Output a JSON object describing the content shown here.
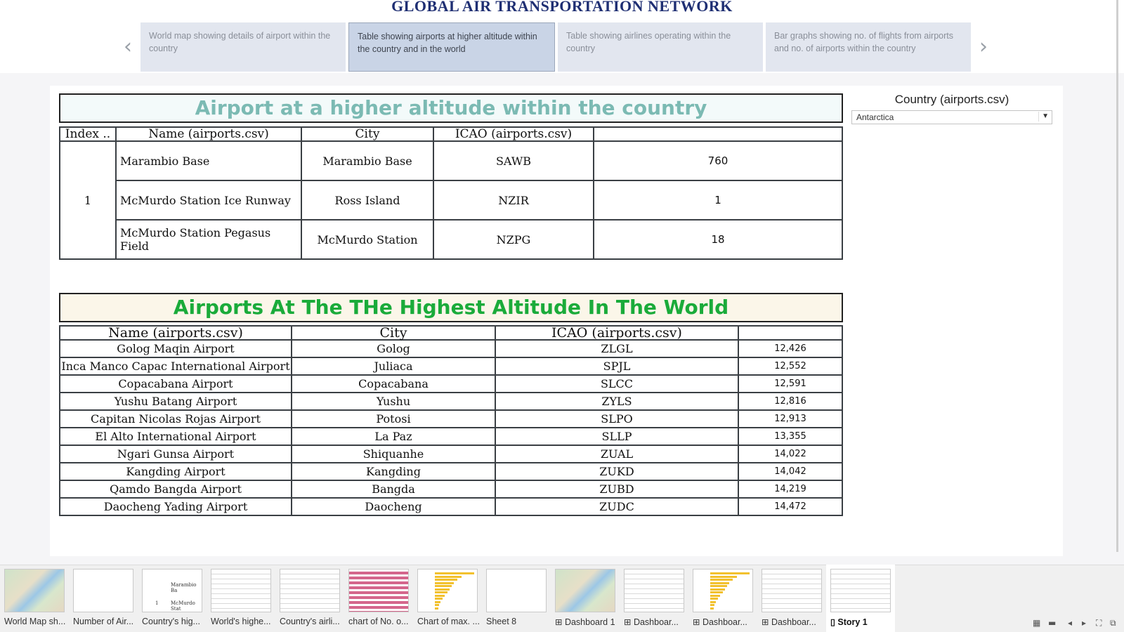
{
  "story": {
    "title": "GLOBAL AIR TRANSPORTATION NETWORK",
    "prev_icon": "chevron-left-icon",
    "next_icon": "chevron-right-icon",
    "points": [
      {
        "label": "World map showing details of airport within the country",
        "active": false
      },
      {
        "label": "Table showing airports at higher altitude within the country and in the world",
        "active": true
      },
      {
        "label": "Table showing airlines operating within the country",
        "active": false
      },
      {
        "label": "Bar graphs showing no. of flights from airports and no. of airports within the country",
        "active": false
      }
    ]
  },
  "country_table": {
    "title": "Airport at a higher altitude within the country",
    "columns": [
      "Index ..",
      "Name (airports.csv)",
      "City",
      "ICAO (airports.csv)",
      ""
    ],
    "index": "1",
    "rows": [
      {
        "name": "Marambio Base",
        "city": "Marambio Base",
        "icao": "SAWB",
        "value": "760"
      },
      {
        "name": "McMurdo Station Ice Runway",
        "city": "Ross Island",
        "icao": "NZIR",
        "value": "1"
      },
      {
        "name": "McMurdo Station Pegasus Field",
        "city": "McMurdo Station",
        "icao": "NZPG",
        "value": "18"
      }
    ]
  },
  "world_table": {
    "title": "Airports At The THe Highest Altitude In The World",
    "columns": [
      "Name (airports.csv)",
      "City",
      "ICAO (airports.csv)",
      ""
    ],
    "rows": [
      {
        "name": "Golog Maqin Airport",
        "city": "Golog",
        "icao": "ZLGL",
        "value": "12,426"
      },
      {
        "name": "Inca Manco Capac International Airport",
        "city": "Juliaca",
        "icao": "SPJL",
        "value": "12,552"
      },
      {
        "name": "Copacabana Airport",
        "city": "Copacabana",
        "icao": "SLCC",
        "value": "12,591"
      },
      {
        "name": "Yushu Batang Airport",
        "city": "Yushu",
        "icao": "ZYLS",
        "value": "12,816"
      },
      {
        "name": "Capitan Nicolas Rojas Airport",
        "city": "Potosi",
        "icao": "SLPO",
        "value": "12,913"
      },
      {
        "name": "El Alto International Airport",
        "city": "La Paz",
        "icao": "SLLP",
        "value": "13,355"
      },
      {
        "name": "Ngari Gunsa Airport",
        "city": "Shiquanhe",
        "icao": "ZUAL",
        "value": "14,022"
      },
      {
        "name": "Kangding Airport",
        "city": "Kangding",
        "icao": "ZUKD",
        "value": "14,042"
      },
      {
        "name": "Qamdo Bangda Airport",
        "city": "Bangda",
        "icao": "ZUBD",
        "value": "14,219"
      },
      {
        "name": "Daocheng Yading Airport",
        "city": "Daocheng",
        "icao": "ZUDC",
        "value": "14,472"
      }
    ]
  },
  "filter": {
    "label": "Country (airports.csv)",
    "value": "Antarctica",
    "icon": "dropdown-caret-icon"
  },
  "tabs": [
    {
      "label": "World Map sh...",
      "thumb": "map",
      "prefix": ""
    },
    {
      "label": "Number of Air...",
      "thumb": "blank",
      "prefix": ""
    },
    {
      "label": "Country's hig...",
      "thumb": "table-small",
      "prefix": ""
    },
    {
      "label": "World's highe...",
      "thumb": "lines",
      "prefix": ""
    },
    {
      "label": "Country's airli...",
      "thumb": "lines",
      "prefix": ""
    },
    {
      "label": "chart of No. o...",
      "thumb": "pink",
      "prefix": ""
    },
    {
      "label": "Chart of max. ...",
      "thumb": "yellow",
      "prefix": ""
    },
    {
      "label": "Sheet 8",
      "thumb": "blank",
      "prefix": ""
    },
    {
      "label": "Dashboard 1",
      "thumb": "map",
      "prefix": "⊞ "
    },
    {
      "label": "Dashboar...",
      "thumb": "lines",
      "prefix": "⊞ "
    },
    {
      "label": "Dashboar...",
      "thumb": "yellow",
      "prefix": "⊞ "
    },
    {
      "label": "Dashboar...",
      "thumb": "lines",
      "prefix": "⊞ "
    },
    {
      "label": "Story 1",
      "thumb": "lines",
      "prefix": "▯ ",
      "active": true
    }
  ],
  "thumb_text": {
    "marambio": "Marambio Ba",
    "mcmurdo": "McMurdo Stat",
    "index": "1"
  },
  "bottom_icons": [
    "grid-view-icon",
    "sheet-view-icon",
    "prev-sheet-icon",
    "next-sheet-icon",
    "fullscreen-icon",
    "present-icon"
  ],
  "bottom_glyphs": [
    "▦",
    "▬",
    "◂",
    "▸",
    "⛶",
    "⧉"
  ]
}
